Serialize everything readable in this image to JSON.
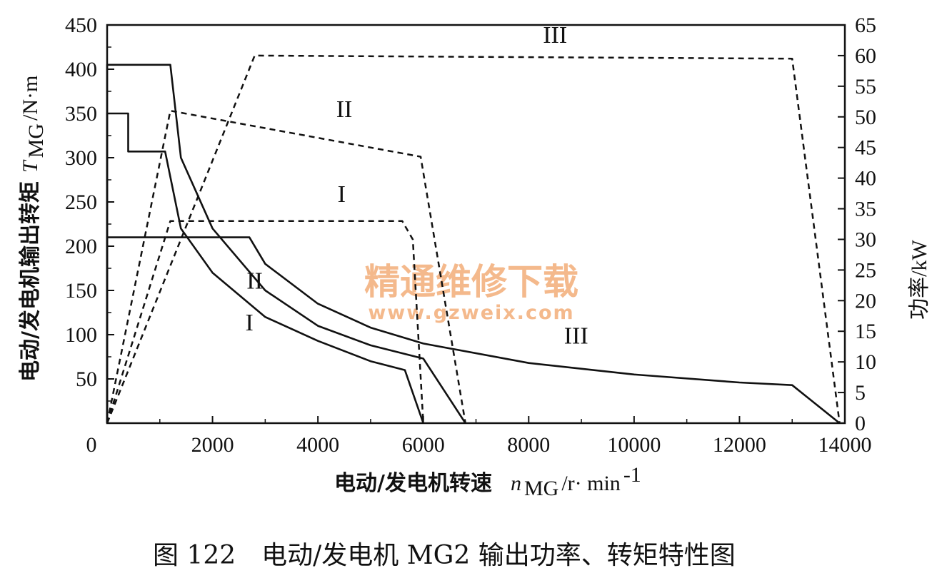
{
  "chart_data": {
    "type": "line",
    "title": "",
    "caption": "图 122　电动/发电机 MG2 输出功率、转矩特性图",
    "xlabel": "电动/发电机转速",
    "xlabel_unit": "/r· min",
    "xlabel_symbol": "n",
    "xlabel_symbol_sub": "MG",
    "xlabel_unit_sup": "-1",
    "ylabel_left": "电动/发电机输出转矩",
    "ylabel_left_symbol": "T",
    "ylabel_left_symbol_sub": "MG",
    "ylabel_left_unit": "/N·m",
    "ylabel_right": "功率/kW",
    "xlim": [
      0,
      14000
    ],
    "ylim_left": [
      0,
      450
    ],
    "ylim_right": [
      0,
      65
    ],
    "x_ticks": [
      "0",
      "2000",
      "4000",
      "6000",
      "8000",
      "10000",
      "12000",
      "14000"
    ],
    "y_left_ticks": [
      "50",
      "100",
      "150",
      "200",
      "250",
      "300",
      "350",
      "400",
      "450"
    ],
    "y_right_ticks": [
      "0",
      "5",
      "10",
      "15",
      "20",
      "25",
      "30",
      "35",
      "40",
      "45",
      "50",
      "55",
      "60",
      "65"
    ],
    "grid": false,
    "series": [
      {
        "name": "I",
        "kind": "torque",
        "axis": "left",
        "style": "solid",
        "x": [
          0,
          0,
          400,
          400,
          1100,
          1400,
          2000,
          3000,
          4000,
          5000,
          5650,
          6000
        ],
        "y": [
          0,
          350,
          350,
          307,
          307,
          220,
          170,
          120,
          93,
          70,
          60,
          0
        ]
      },
      {
        "name": "II",
        "kind": "torque",
        "axis": "left",
        "style": "solid",
        "x": [
          0,
          0,
          1200,
          1400,
          2000,
          3000,
          4000,
          5000,
          6000,
          6800
        ],
        "y": [
          0,
          405,
          405,
          300,
          220,
          150,
          110,
          88,
          73,
          0
        ]
      },
      {
        "name": "III",
        "kind": "torque",
        "axis": "left",
        "style": "solid",
        "x": [
          0,
          0,
          2700,
          3000,
          4000,
          5000,
          6000,
          8000,
          10000,
          12000,
          13000,
          13900
        ],
        "y": [
          0,
          210,
          210,
          180,
          135,
          108,
          90,
          68,
          55,
          46,
          43,
          0
        ]
      },
      {
        "name": "I",
        "kind": "power",
        "axis": "right",
        "style": "dashed",
        "x": [
          0,
          1200,
          5600,
          5800,
          6000
        ],
        "y": [
          0,
          33,
          33,
          30,
          0
        ]
      },
      {
        "name": "II",
        "kind": "power",
        "axis": "right",
        "style": "dashed",
        "x": [
          0,
          1200,
          5950,
          6800
        ],
        "y": [
          0,
          51,
          43.5,
          0
        ]
      },
      {
        "name": "III",
        "kind": "power",
        "axis": "right",
        "style": "dashed",
        "x": [
          0,
          2800,
          13000,
          13900
        ],
        "y": [
          0,
          60,
          59.5,
          0
        ]
      }
    ],
    "annotations": [
      {
        "text": "I",
        "x": 2700,
        "y": 105
      },
      {
        "text": "II",
        "x": 2800,
        "y": 152
      },
      {
        "text": "III",
        "x": 8900,
        "y": 90
      },
      {
        "text": "I",
        "x": 4450,
        "y": 250
      },
      {
        "text": "II",
        "x": 4500,
        "y": 346
      },
      {
        "text": "III",
        "x": 8500,
        "y": 430
      }
    ]
  },
  "watermark": {
    "line1": "精通维修下载",
    "line2": "www.gzweix.com"
  }
}
